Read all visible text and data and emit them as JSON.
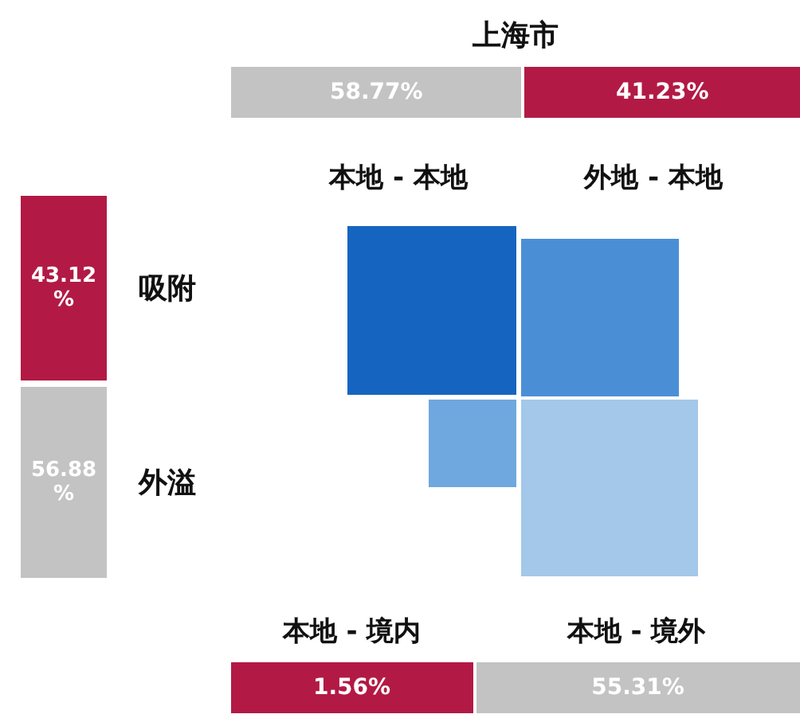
{
  "chart_data": [
    {
      "type": "other",
      "title": "上海市",
      "values": [
        58.77,
        41.23
      ],
      "colors": [
        "#c3c3c3",
        "#b21a45"
      ],
      "value_labels": [
        "58.77%",
        "41.23%"
      ]
    },
    {
      "type": "other",
      "categories": [
        "吸附",
        "外溢"
      ],
      "values": [
        43.12,
        56.88
      ],
      "colors": [
        "#b21a45",
        "#c3c3c3"
      ],
      "value_labels": [
        "43.12 %",
        "56.88 %"
      ]
    },
    {
      "type": "other",
      "categories": [
        "本地 - 本地",
        "外地 - 本地"
      ]
    },
    {
      "type": "other",
      "categories": [
        "本地 - 境内",
        "本地 - 境外"
      ],
      "values": [
        1.56,
        55.31
      ],
      "colors": [
        "#b21a45",
        "#c3c3c3"
      ],
      "value_labels": [
        "1.56%",
        "55.31%"
      ]
    }
  ]
}
